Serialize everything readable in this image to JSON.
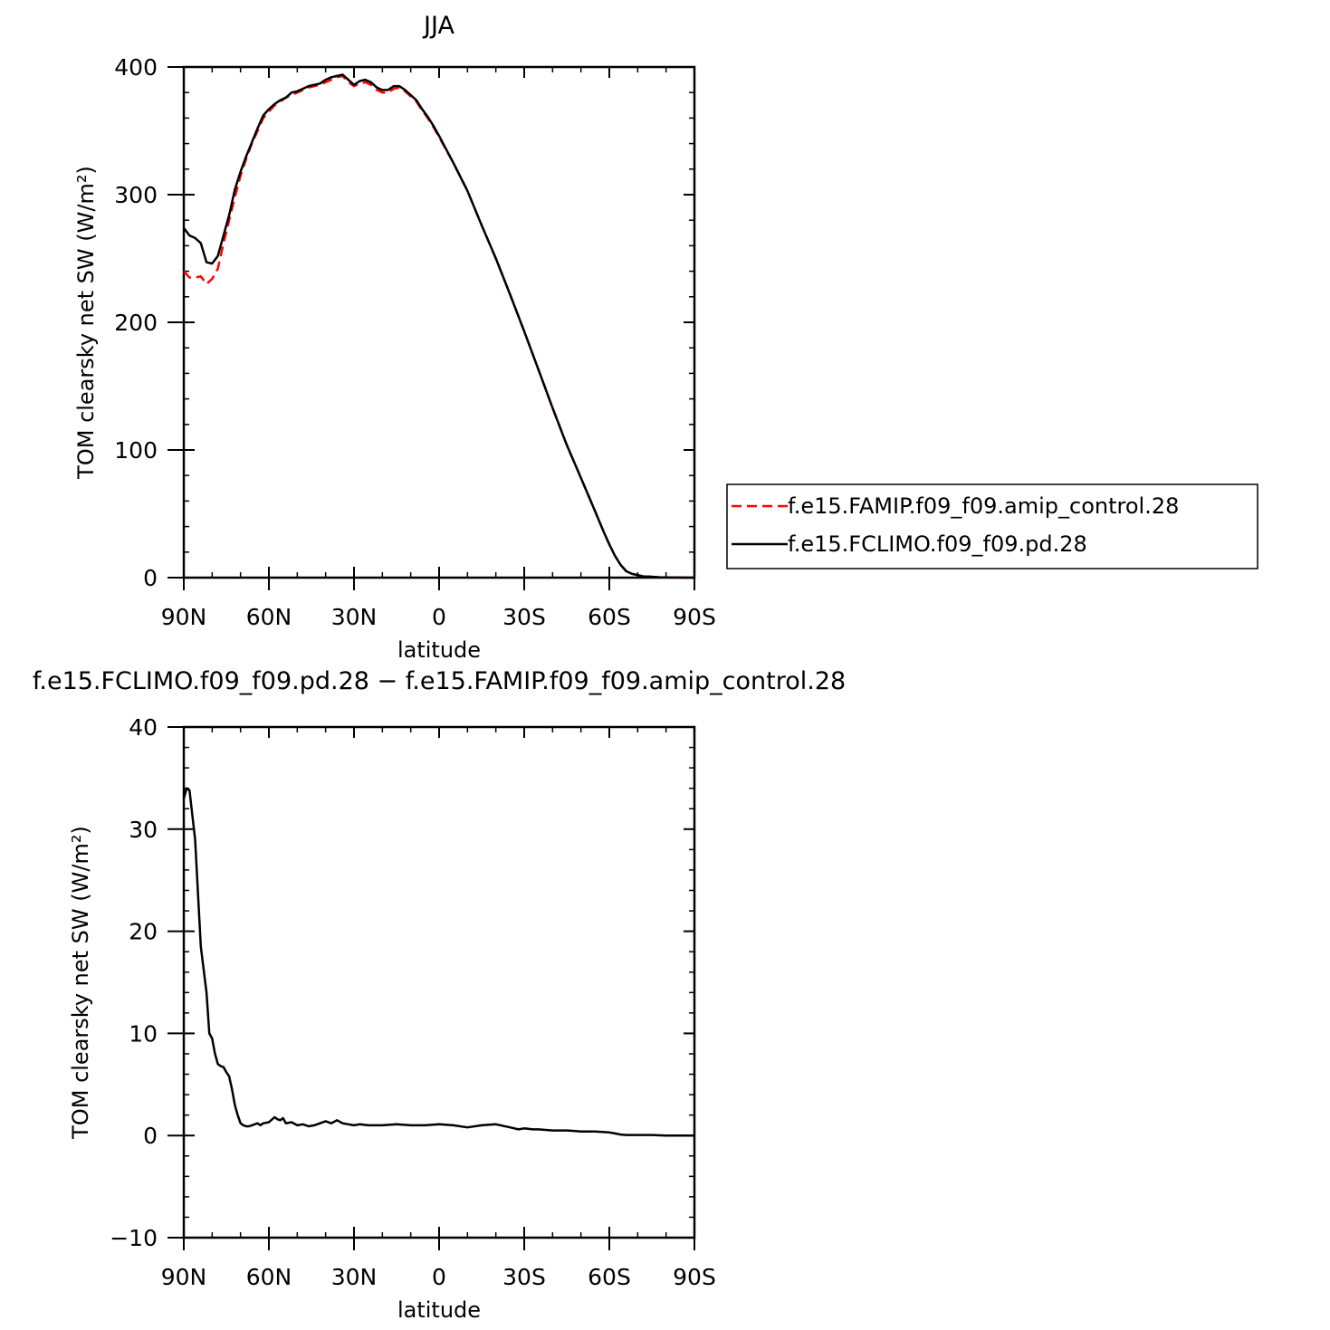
{
  "chart_data": [
    {
      "type": "line",
      "title": "JJA",
      "xlabel": "latitude",
      "ylabel": "TOM clearsky net SW (W/m²)",
      "xlim": [
        90,
        -90
      ],
      "ylim": [
        0,
        400
      ],
      "xticks": [
        {
          "value": 90,
          "label": "90N"
        },
        {
          "value": 60,
          "label": "60N"
        },
        {
          "value": 30,
          "label": "30N"
        },
        {
          "value": 0,
          "label": "0"
        },
        {
          "value": -30,
          "label": "30S"
        },
        {
          "value": -60,
          "label": "60S"
        },
        {
          "value": -90,
          "label": "90S"
        }
      ],
      "yticks": [
        {
          "value": 0,
          "label": "0"
        },
        {
          "value": 100,
          "label": "100"
        },
        {
          "value": 200,
          "label": "200"
        },
        {
          "value": 300,
          "label": "300"
        },
        {
          "value": 400,
          "label": "400"
        }
      ],
      "legend_position": "right",
      "series": [
        {
          "name": "f.e15.FAMIP.f09_f09.amip_control.28",
          "color": "#ff0000",
          "dash": "dashed",
          "x": [
            90,
            88,
            86,
            84,
            82,
            80,
            78,
            76,
            74,
            72,
            70,
            68,
            66,
            64,
            62,
            60,
            58,
            56,
            54,
            52,
            50,
            48,
            46,
            44,
            42,
            40,
            38,
            36,
            34,
            32,
            30,
            28,
            26,
            24,
            22,
            20,
            18,
            16,
            14,
            12,
            10,
            8,
            6,
            4,
            2,
            0,
            -5,
            -10,
            -15,
            -20,
            -25,
            -30,
            -35,
            -40,
            -45,
            -50,
            -55,
            -58,
            -60,
            -62,
            -64,
            -66,
            -68,
            -70,
            -72,
            -74,
            -76,
            -78,
            -80,
            -84,
            -88,
            -90
          ],
          "y": [
            240,
            235,
            235,
            236,
            230,
            234,
            242,
            262,
            280,
            298,
            315,
            328,
            340,
            350,
            360,
            365,
            370,
            373,
            376,
            378,
            380,
            382,
            384,
            385,
            386,
            388,
            390,
            392,
            393,
            388,
            385,
            387,
            388,
            386,
            382,
            380,
            380,
            383,
            384,
            381,
            377,
            373,
            366,
            360,
            353,
            345,
            325,
            303,
            276,
            250,
            222,
            193,
            163,
            133,
            104,
            78,
            52,
            36,
            26,
            17,
            10,
            5,
            3,
            2,
            1,
            0.8,
            0.5,
            0.3,
            0.2,
            0.1,
            0,
            0
          ]
        },
        {
          "name": "f.e15.FCLIMO.f09_f09.pd.28",
          "color": "#000000",
          "dash": "solid",
          "x": [
            90,
            88,
            86,
            84,
            82,
            80,
            78,
            76,
            74,
            72,
            70,
            68,
            66,
            64,
            62,
            60,
            58,
            56,
            54,
            52,
            50,
            48,
            46,
            44,
            42,
            40,
            38,
            36,
            34,
            32,
            30,
            28,
            26,
            24,
            22,
            20,
            18,
            16,
            14,
            12,
            10,
            8,
            6,
            4,
            2,
            0,
            -5,
            -10,
            -15,
            -20,
            -25,
            -30,
            -35,
            -40,
            -45,
            -50,
            -55,
            -58,
            -60,
            -62,
            -64,
            -66,
            -68,
            -70,
            -72,
            -74,
            -76,
            -78,
            -80,
            -84,
            -88,
            -90
          ],
          "y": [
            274,
            268,
            266,
            262,
            247,
            246,
            252,
            268,
            284,
            304,
            318,
            330,
            341,
            352,
            362,
            367,
            371,
            374,
            376,
            380,
            381,
            383,
            385,
            386,
            387,
            390,
            392,
            393,
            394,
            390,
            386,
            389,
            390,
            388,
            384,
            382,
            382,
            385,
            385,
            382,
            378,
            374,
            367,
            361,
            354,
            346,
            325,
            303,
            276,
            250,
            222,
            193,
            163,
            133,
            104,
            78,
            52,
            36,
            26,
            17,
            10,
            5,
            3,
            2,
            1,
            0.8,
            0.5,
            0.3,
            0.2,
            0.1,
            0,
            0
          ]
        }
      ]
    },
    {
      "type": "line",
      "title": "f.e15.FCLIMO.f09_f09.pd.28 − f.e15.FAMIP.f09_f09.amip_control.28",
      "xlabel": "latitude",
      "ylabel": "TOM clearsky net SW (W/m²)",
      "xlim": [
        90,
        -90
      ],
      "ylim": [
        -10,
        40
      ],
      "xticks": [
        {
          "value": 90,
          "label": "90N"
        },
        {
          "value": 60,
          "label": "60N"
        },
        {
          "value": 30,
          "label": "30N"
        },
        {
          "value": 0,
          "label": "0"
        },
        {
          "value": -30,
          "label": "30S"
        },
        {
          "value": -60,
          "label": "60S"
        },
        {
          "value": -90,
          "label": "90S"
        }
      ],
      "yticks": [
        {
          "value": -10,
          "label": "−10"
        },
        {
          "value": 0,
          "label": "0"
        },
        {
          "value": 10,
          "label": "10"
        },
        {
          "value": 20,
          "label": "20"
        },
        {
          "value": 30,
          "label": "30"
        },
        {
          "value": 40,
          "label": "40"
        }
      ],
      "series": [
        {
          "color": "#000000",
          "dash": "solid",
          "x": [
            90,
            89,
            88,
            86,
            84,
            82,
            81,
            80,
            79,
            78,
            77,
            76,
            75,
            74,
            73,
            72,
            71,
            70,
            69,
            68,
            67,
            66,
            65,
            64,
            63,
            62,
            60,
            58,
            57,
            56,
            55,
            54,
            52,
            50,
            48,
            46,
            44,
            42,
            40,
            38,
            36,
            34,
            32,
            30,
            28,
            25,
            20,
            15,
            10,
            5,
            0,
            -5,
            -10,
            -15,
            -20,
            -25,
            -28,
            -30,
            -33,
            -35,
            -40,
            -45,
            -50,
            -55,
            -60,
            -62,
            -64,
            -66,
            -70,
            -75,
            -80,
            -85,
            -90
          ],
          "y": [
            33,
            34,
            33.8,
            29,
            18.5,
            14,
            10,
            9.5,
            8,
            7,
            6.8,
            6.7,
            6.2,
            5.8,
            4.5,
            3,
            2,
            1.2,
            1,
            0.9,
            0.9,
            1.0,
            1.1,
            1.2,
            1.0,
            1.2,
            1.3,
            1.8,
            1.6,
            1.5,
            1.7,
            1.2,
            1.3,
            1.0,
            1.1,
            0.9,
            1.0,
            1.2,
            1.4,
            1.2,
            1.5,
            1.2,
            1.1,
            1.0,
            1.1,
            1.0,
            1.0,
            1.1,
            1.0,
            1.0,
            1.1,
            1.0,
            0.8,
            1.0,
            1.1,
            0.8,
            0.6,
            0.7,
            0.6,
            0.6,
            0.5,
            0.5,
            0.4,
            0.4,
            0.3,
            0.2,
            0.1,
            0.05,
            0.05,
            0.05,
            0,
            0,
            0
          ]
        }
      ]
    }
  ]
}
